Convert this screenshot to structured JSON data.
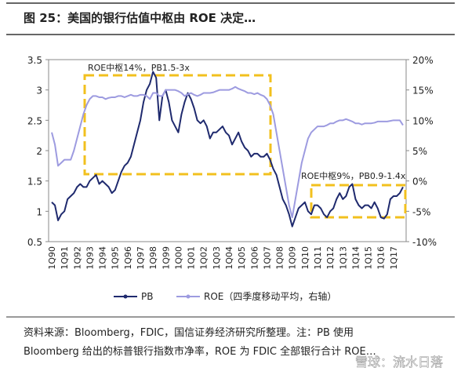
{
  "chart_data": {
    "type": "line",
    "title": "图 25：美国的银行估值中枢由 ROE 决定…",
    "categories": [
      "1Q90",
      null,
      null,
      null,
      "1Q91",
      null,
      null,
      null,
      "1Q92",
      null,
      null,
      null,
      "1Q93",
      null,
      null,
      null,
      "1Q94",
      null,
      null,
      null,
      "1Q95",
      null,
      null,
      null,
      "1Q96",
      null,
      null,
      null,
      "1Q97",
      null,
      null,
      null,
      "1Q98",
      null,
      null,
      null,
      "1Q99",
      null,
      null,
      null,
      "1Q00",
      null,
      null,
      null,
      "1Q01",
      null,
      null,
      null,
      "1Q02",
      null,
      null,
      null,
      "1Q03",
      null,
      null,
      null,
      "1Q04",
      null,
      null,
      null,
      "1Q05",
      null,
      null,
      null,
      "1Q06",
      null,
      null,
      null,
      "1Q07",
      null,
      null,
      null,
      "1Q08",
      null,
      null,
      null,
      "1Q09",
      null,
      null,
      null,
      "1Q10",
      null,
      null,
      null,
      "1Q11",
      null,
      null,
      null,
      "1Q12",
      null,
      null,
      null,
      "1Q13",
      null,
      null,
      null,
      "1Q14",
      null,
      null,
      null,
      "1Q15",
      null,
      null,
      null,
      "1Q16",
      null,
      null,
      null,
      "1Q17",
      null,
      null,
      null
    ],
    "series": [
      {
        "name": "PB",
        "color": "#1f2a6e",
        "axis": "y",
        "values": [
          1.15,
          1.1,
          0.85,
          0.95,
          1.0,
          1.2,
          1.25,
          1.3,
          1.4,
          1.45,
          1.4,
          1.4,
          1.5,
          1.55,
          1.6,
          1.45,
          1.5,
          1.45,
          1.4,
          1.3,
          1.35,
          1.5,
          1.65,
          1.75,
          1.8,
          1.9,
          2.1,
          2.3,
          2.5,
          2.8,
          3.0,
          3.1,
          3.3,
          3.2,
          2.5,
          2.9,
          3.0,
          2.8,
          2.5,
          2.4,
          2.3,
          2.6,
          2.8,
          2.95,
          2.85,
          2.7,
          2.5,
          2.45,
          2.5,
          2.4,
          2.2,
          2.3,
          2.3,
          2.35,
          2.4,
          2.3,
          2.25,
          2.1,
          2.2,
          2.3,
          2.15,
          2.05,
          2.0,
          1.9,
          1.95,
          1.95,
          1.9,
          1.9,
          1.95,
          1.85,
          1.7,
          1.6,
          1.4,
          1.2,
          1.1,
          0.95,
          0.75,
          0.9,
          1.05,
          1.1,
          1.15,
          1.0,
          0.95,
          1.1,
          1.1,
          1.05,
          0.95,
          0.9,
          1.0,
          1.05,
          1.2,
          1.3,
          1.2,
          1.25,
          1.4,
          1.45,
          1.2,
          1.1,
          1.05,
          1.1,
          1.1,
          1.05,
          1.15,
          1.05,
          0.9,
          0.88,
          0.95,
          1.2,
          1.25,
          1.25,
          1.3,
          1.4
        ]
      },
      {
        "name": "ROE（四季度移动平均，右轴）",
        "color": "#9d9be0",
        "axis": "y2",
        "values": [
          8,
          6,
          2.5,
          3,
          3.5,
          3.5,
          3.5,
          5,
          7,
          9,
          11,
          12.5,
          13.5,
          14,
          14,
          13.8,
          13.8,
          13.5,
          13.7,
          13.8,
          13.8,
          14,
          14,
          13.8,
          14,
          14.2,
          14,
          14,
          14.2,
          14.2,
          14,
          13.5,
          14.5,
          14.5,
          14,
          14,
          15,
          15,
          15,
          15,
          14.8,
          14.5,
          14,
          14.3,
          14.5,
          14.2,
          14,
          14.2,
          14.5,
          14.5,
          14.5,
          14.6,
          14.8,
          15,
          15,
          15,
          15,
          15.2,
          15.5,
          15.2,
          15,
          14.8,
          14.5,
          14.5,
          14.3,
          14.5,
          14.2,
          14,
          13.5,
          12.5,
          11,
          8,
          5,
          2,
          -1,
          -4,
          -6,
          -3,
          0,
          3,
          5,
          7,
          8,
          8.5,
          9,
          9,
          9,
          9.2,
          9.5,
          9.5,
          9.8,
          10,
          10,
          10.2,
          10,
          9.8,
          9.5,
          9.5,
          9.3,
          9.5,
          9.5,
          9.5,
          9.6,
          9.8,
          9.8,
          9.8,
          9.8,
          9.9,
          10,
          10,
          10,
          9.2
        ]
      }
    ],
    "ylim": [
      0.5,
      3.5
    ],
    "yticks": [
      0.5,
      1.0,
      1.5,
      2.0,
      2.5,
      3.0,
      3.5
    ],
    "y2lim": [
      -10,
      20
    ],
    "y2ticks": [
      {
        "value": -10,
        "label": "-10%"
      },
      {
        "value": -5,
        "label": "-5%"
      },
      {
        "value": 0,
        "label": "0%"
      },
      {
        "value": 5,
        "label": "5%"
      },
      {
        "value": 10,
        "label": "10%"
      },
      {
        "value": 15,
        "label": "15%"
      },
      {
        "value": 20,
        "label": "20%"
      }
    ],
    "annotations": [
      "ROE中枢14%，PB1.5-3x",
      "ROE中枢9%，PB0.9-1.4x"
    ],
    "source": [
      "资料来源：Bloomberg，FDIC，国信证券经济研究所整理。注：PB 使用",
      "Bloomberg 给出的标普银行指数市净率，ROE 为 FDIC 全部银行合计 ROE…"
    ],
    "watermark": "雪球：流水日落"
  }
}
